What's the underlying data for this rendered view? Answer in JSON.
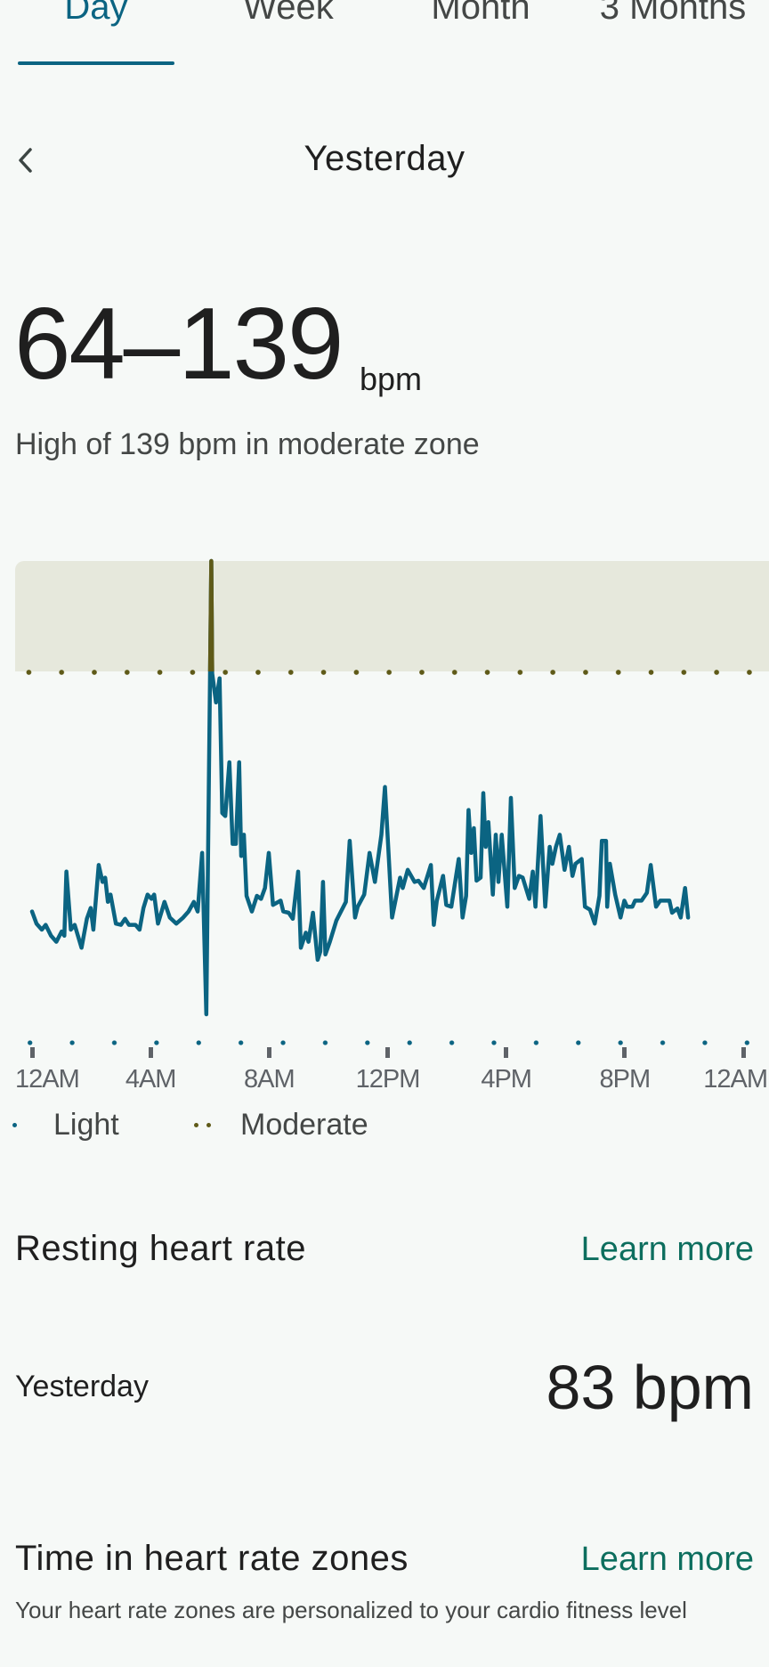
{
  "tabs": [
    {
      "label": "Day",
      "active": true
    },
    {
      "label": "Week",
      "active": false
    },
    {
      "label": "Month",
      "active": false
    },
    {
      "label": "3 Months",
      "active": false
    }
  ],
  "date_nav": {
    "back_icon": "chevron-left-icon",
    "title": "Yesterday"
  },
  "summary": {
    "range": "64–139",
    "unit": "bpm",
    "subtitle": "High of 139 bpm in moderate zone"
  },
  "legend": {
    "light": "Light",
    "moderate": "Moderate"
  },
  "colors": {
    "line": "#0b6482",
    "moderate": "#5f5a18",
    "zone_band": "#e6e8dc",
    "link": "#0d6e5e"
  },
  "chart_data": {
    "type": "line",
    "title": "",
    "xlabel": "",
    "ylabel": "bpm",
    "xlim": [
      0,
      24
    ],
    "ylim": [
      64,
      139
    ],
    "moderate_threshold": 121,
    "x_ticks": [
      {
        "hour": 0,
        "label": "12AM"
      },
      {
        "hour": 4,
        "label": "4AM"
      },
      {
        "hour": 8,
        "label": "8AM"
      },
      {
        "hour": 12,
        "label": "12PM"
      },
      {
        "hour": 16,
        "label": "4PM"
      },
      {
        "hour": 20,
        "label": "8PM"
      },
      {
        "hour": 24,
        "label": "12AM"
      }
    ],
    "legend": [
      "Light",
      "Moderate"
    ],
    "series": [
      {
        "name": "Heart rate",
        "points": [
          [
            0.0,
            81
          ],
          [
            0.15,
            79
          ],
          [
            0.33,
            78
          ],
          [
            0.46,
            78.8
          ],
          [
            0.64,
            77
          ],
          [
            0.82,
            76
          ],
          [
            1.0,
            77.7
          ],
          [
            1.09,
            77
          ],
          [
            1.16,
            87.6
          ],
          [
            1.31,
            78
          ],
          [
            1.44,
            78.8
          ],
          [
            1.67,
            75
          ],
          [
            1.85,
            79.8
          ],
          [
            1.98,
            81.6
          ],
          [
            2.07,
            78
          ],
          [
            2.25,
            88.7
          ],
          [
            2.38,
            85.9
          ],
          [
            2.47,
            86.6
          ],
          [
            2.56,
            82.6
          ],
          [
            2.65,
            83.8
          ],
          [
            2.83,
            79
          ],
          [
            3.0,
            78.8
          ],
          [
            3.14,
            79.8
          ],
          [
            3.27,
            78.8
          ],
          [
            3.49,
            78.8
          ],
          [
            3.63,
            78
          ],
          [
            3.76,
            81.6
          ],
          [
            3.9,
            83.8
          ],
          [
            4.03,
            83.1
          ],
          [
            4.12,
            83.8
          ],
          [
            4.25,
            79
          ],
          [
            4.47,
            82.6
          ],
          [
            4.65,
            80
          ],
          [
            4.87,
            79
          ],
          [
            5.1,
            80
          ],
          [
            5.28,
            81
          ],
          [
            5.46,
            82.6
          ],
          [
            5.59,
            81
          ],
          [
            5.74,
            90.7
          ],
          [
            5.88,
            64
          ],
          [
            6.05,
            139
          ],
          [
            6.08,
            120.4
          ],
          [
            6.21,
            115.6
          ],
          [
            6.33,
            119.6
          ],
          [
            6.42,
            97.3
          ],
          [
            6.52,
            96.8
          ],
          [
            6.66,
            105.7
          ],
          [
            6.77,
            92.2
          ],
          [
            6.88,
            92.2
          ],
          [
            6.99,
            105.7
          ],
          [
            7.06,
            90.2
          ],
          [
            7.15,
            93.7
          ],
          [
            7.24,
            83.6
          ],
          [
            7.42,
            81
          ],
          [
            7.59,
            83.6
          ],
          [
            7.73,
            83.1
          ],
          [
            7.86,
            84.9
          ],
          [
            7.99,
            90.7
          ],
          [
            8.13,
            82.1
          ],
          [
            8.39,
            82.8
          ],
          [
            8.48,
            81
          ],
          [
            8.66,
            80.8
          ],
          [
            8.8,
            79.8
          ],
          [
            8.98,
            87.6
          ],
          [
            9.07,
            75
          ],
          [
            9.24,
            77.5
          ],
          [
            9.33,
            76
          ],
          [
            9.48,
            80.8
          ],
          [
            9.64,
            73
          ],
          [
            9.73,
            74.4
          ],
          [
            9.82,
            85.9
          ],
          [
            9.9,
            73.9
          ],
          [
            10.05,
            76
          ],
          [
            10.27,
            79.5
          ],
          [
            10.59,
            82.6
          ],
          [
            10.72,
            92.7
          ],
          [
            10.9,
            80
          ],
          [
            10.99,
            81.8
          ],
          [
            11.21,
            83.8
          ],
          [
            11.39,
            90.7
          ],
          [
            11.57,
            85.9
          ],
          [
            11.79,
            93.7
          ],
          [
            11.91,
            101.6
          ],
          [
            12.15,
            80
          ],
          [
            12.42,
            86.6
          ],
          [
            12.51,
            84.9
          ],
          [
            12.68,
            87.9
          ],
          [
            12.91,
            85.9
          ],
          [
            13.04,
            86.1
          ],
          [
            13.22,
            84.9
          ],
          [
            13.46,
            88.7
          ],
          [
            13.56,
            78.8
          ],
          [
            13.66,
            82.8
          ],
          [
            13.87,
            86.9
          ],
          [
            13.98,
            82.1
          ],
          [
            14.15,
            81.8
          ],
          [
            14.4,
            89.7
          ],
          [
            14.53,
            80
          ],
          [
            14.65,
            83.6
          ],
          [
            14.73,
            97.8
          ],
          [
            14.82,
            90.7
          ],
          [
            14.91,
            94.8
          ],
          [
            15.0,
            86.1
          ],
          [
            15.14,
            86.6
          ],
          [
            15.23,
            100.6
          ],
          [
            15.31,
            91.7
          ],
          [
            15.4,
            95.8
          ],
          [
            15.55,
            83.8
          ],
          [
            15.65,
            93.7
          ],
          [
            15.74,
            85.9
          ],
          [
            15.85,
            93.7
          ],
          [
            16.04,
            81.8
          ],
          [
            16.16,
            99.8
          ],
          [
            16.29,
            84.9
          ],
          [
            16.43,
            86.9
          ],
          [
            16.56,
            86.6
          ],
          [
            16.78,
            83.1
          ],
          [
            16.9,
            87.6
          ],
          [
            16.99,
            81.8
          ],
          [
            17.16,
            96.8
          ],
          [
            17.32,
            81.8
          ],
          [
            17.47,
            91.7
          ],
          [
            17.56,
            88.9
          ],
          [
            17.68,
            91.7
          ],
          [
            17.81,
            93.7
          ],
          [
            17.97,
            87.9
          ],
          [
            18.12,
            91.7
          ],
          [
            18.24,
            86.9
          ],
          [
            18.34,
            88.9
          ],
          [
            18.55,
            89.7
          ],
          [
            18.66,
            81.8
          ],
          [
            18.83,
            81.3
          ],
          [
            18.99,
            79
          ],
          [
            19.15,
            83.6
          ],
          [
            19.23,
            92.7
          ],
          [
            19.37,
            92.7
          ],
          [
            19.41,
            81.8
          ],
          [
            19.5,
            88.9
          ],
          [
            19.68,
            83.8
          ],
          [
            19.86,
            80
          ],
          [
            19.99,
            82.8
          ],
          [
            20.08,
            81.8
          ],
          [
            20.26,
            81.8
          ],
          [
            20.35,
            82.8
          ],
          [
            20.57,
            82.8
          ],
          [
            20.75,
            84.1
          ],
          [
            20.88,
            88.7
          ],
          [
            21.06,
            81.8
          ],
          [
            21.2,
            82.8
          ],
          [
            21.51,
            82.8
          ],
          [
            21.6,
            80.8
          ],
          [
            21.78,
            81.5
          ],
          [
            21.89,
            80
          ],
          [
            22.04,
            84.9
          ],
          [
            22.14,
            80
          ]
        ]
      }
    ]
  },
  "resting_hr": {
    "title": "Resting heart rate",
    "learn": "Learn more",
    "label": "Yesterday",
    "value": "83 bpm"
  },
  "zones": {
    "title": "Time in heart rate zones",
    "learn": "Learn more",
    "description": "Your heart rate zones are personalized to your cardio fitness level"
  }
}
